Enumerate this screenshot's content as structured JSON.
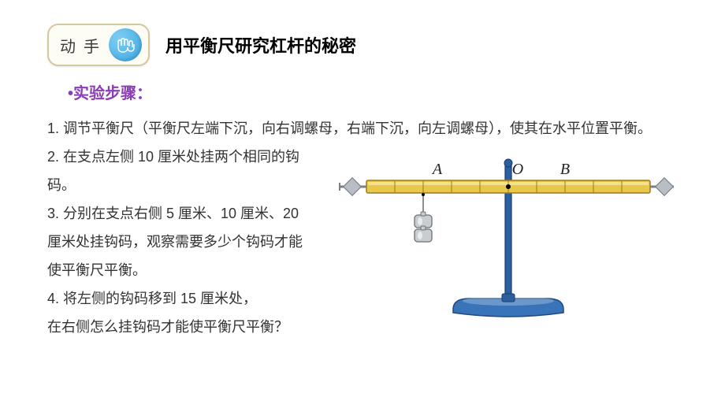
{
  "badge": {
    "label": "动手"
  },
  "title": "用平衡尺研究杠杆的秘密",
  "section_label": "•实验步骤：",
  "steps": {
    "s1": "1. 调节平衡尺（平衡尺左端下沉，向右调螺母，右端下沉，向左调螺母），使其在水平位置平衡。",
    "s2": "2. 在支点左侧 10 厘米处挂两个相同的钩码。",
    "s3": "3. 分别在支点右侧 5 厘米、10 厘米、20 厘米处挂钩码，观察需要多少个钩码才能使平衡尺平衡。",
    "s4a": "4. 将左侧的钩码移到 15 厘米处，",
    "s4b": "在右侧怎么挂钩码才能使平衡尺平衡？"
  },
  "diagram": {
    "labels": {
      "A": "A",
      "O": "O",
      "B": "B"
    },
    "beam_color": "#e8c84a",
    "beam_highlight": "#f5e08f",
    "beam_edge": "#9c7a1f",
    "stand_color": "#2b5fa0",
    "stand_edge": "#1a3d6b",
    "base_color": "#3a74b8",
    "base_edge": "#1f4a7d",
    "screw_color": "#b8bec4",
    "screw_edge": "#7a8086",
    "weight_color": "#c9ccd0",
    "weight_edge": "#6d7075",
    "string_color": "#444",
    "text_color": "#222",
    "font_family": "Times New Roman, serif",
    "font_style": "italic",
    "font_size": 20,
    "beam_segments": 10,
    "weight_slot": 2,
    "weights": 2
  },
  "hands_icon": {
    "stroke": "#ffffff",
    "fill": "none"
  }
}
